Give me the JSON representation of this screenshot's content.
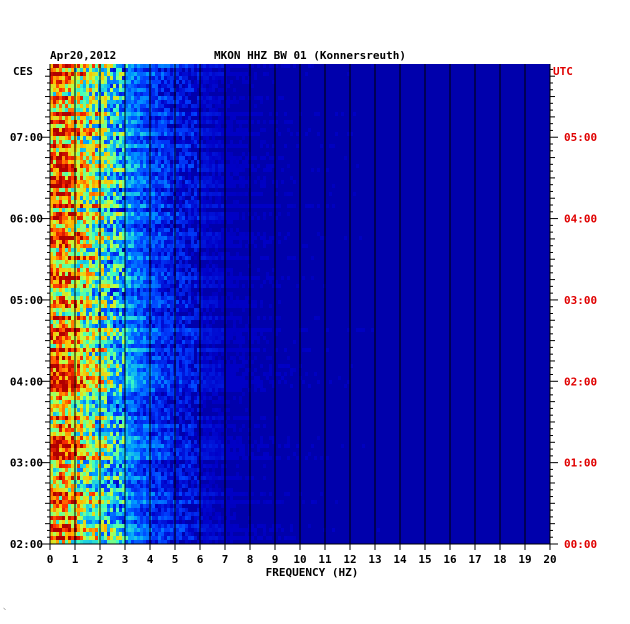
{
  "chart_data": {
    "type": "heatmap",
    "title": "MKON HHZ BW 01 (Konnersreuth)",
    "date": "Apr20,2012",
    "xlabel": "FREQUENCY (HZ)",
    "x_ticks": [
      0,
      1,
      2,
      3,
      4,
      5,
      6,
      7,
      8,
      9,
      10,
      11,
      12,
      13,
      14,
      15,
      16,
      17,
      18,
      19,
      20
    ],
    "xlim": [
      0,
      20
    ],
    "left_axis": {
      "label": "CES",
      "ticks": [
        "07:00",
        "06:00",
        "05:00",
        "04:00",
        "03:00",
        "02:00"
      ],
      "range_hours": [
        2.0,
        7.9
      ]
    },
    "right_axis": {
      "label": "UTC",
      "ticks": [
        "05:00",
        "04:00",
        "03:00",
        "02:00",
        "01:00",
        "00:00"
      ],
      "range_hours": [
        0.0,
        5.9
      ]
    },
    "energy_profile": {
      "description_units": "relative spectral power (0 = low / dark blue, 1 = high / red) versus frequency",
      "frequency_hz": [
        0,
        0.5,
        1,
        1.5,
        2,
        2.5,
        3,
        3.5,
        4,
        5,
        6,
        8,
        10,
        20
      ],
      "relative_power": [
        0.78,
        0.82,
        0.72,
        0.62,
        0.55,
        0.45,
        0.38,
        0.3,
        0.25,
        0.18,
        0.14,
        0.1,
        0.08,
        0.05
      ]
    },
    "colormap": [
      "#00007a",
      "#0000c8",
      "#0040ff",
      "#00a0ff",
      "#40ffc0",
      "#c0ff40",
      "#ffc000",
      "#ff3000",
      "#b00000"
    ],
    "grid": true
  },
  "corner_mark": "⸌"
}
